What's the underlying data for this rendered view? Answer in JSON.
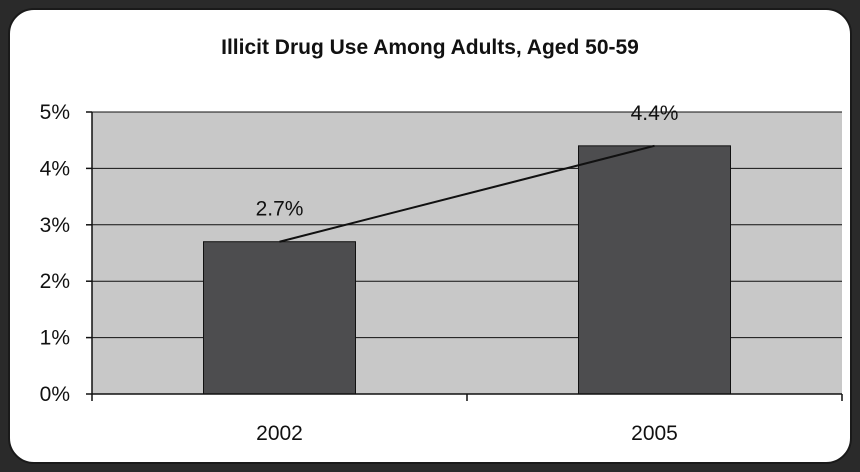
{
  "chart_data": {
    "type": "bar",
    "title": "Illicit Drug Use Among Adults, Aged 50-59",
    "xlabel": "",
    "ylabel": "",
    "categories": [
      "2002",
      "2005"
    ],
    "values": [
      2.7,
      4.4
    ],
    "data_labels": [
      "2.7%",
      "4.4%"
    ],
    "ylim": [
      0,
      5
    ],
    "yticks": [
      0,
      1,
      2,
      3,
      4,
      5
    ],
    "ytick_labels": [
      "0%",
      "1%",
      "2%",
      "3%",
      "4%",
      "5%"
    ],
    "trend_line": true,
    "grid": true,
    "legend": "none",
    "colors": {
      "bar": "#4d4d4f",
      "plot_background": "#c8c8c8",
      "gridline": "#111111",
      "trend_line": "#111111"
    }
  }
}
